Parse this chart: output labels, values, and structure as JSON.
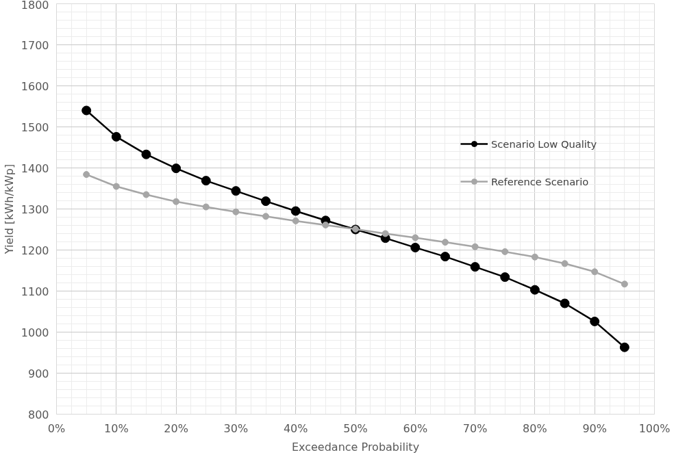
{
  "chart_data": {
    "type": "line",
    "xlabel": "Exceedance Probability",
    "ylabel": "Yield [kWh/kWp]",
    "x": [
      5,
      10,
      15,
      20,
      25,
      30,
      35,
      40,
      45,
      50,
      55,
      60,
      65,
      70,
      75,
      80,
      85,
      90,
      95
    ],
    "series": [
      {
        "name": "Scenario Low Quality",
        "color": "#000000",
        "values": [
          1540,
          1476,
          1433,
          1399,
          1369,
          1344,
          1319,
          1295,
          1272,
          1250,
          1229,
          1206,
          1184,
          1159,
          1134,
          1103,
          1070,
          1026,
          963
        ]
      },
      {
        "name": "Reference Scenario",
        "color": "#a6a6a6",
        "values": [
          1384,
          1355,
          1335,
          1318,
          1305,
          1293,
          1282,
          1271,
          1261,
          1251,
          1240,
          1230,
          1219,
          1208,
          1196,
          1183,
          1167,
          1147,
          1117
        ]
      }
    ],
    "xlim": [
      0,
      100
    ],
    "ylim": [
      800,
      1800
    ],
    "xticks": [
      {
        "value": 0,
        "label": "0%"
      },
      {
        "value": 10,
        "label": "10%"
      },
      {
        "value": 20,
        "label": "20%"
      },
      {
        "value": 30,
        "label": "30%"
      },
      {
        "value": 40,
        "label": "40%"
      },
      {
        "value": 50,
        "label": "50%"
      },
      {
        "value": 60,
        "label": "60%"
      },
      {
        "value": 70,
        "label": "70%"
      },
      {
        "value": 80,
        "label": "80%"
      },
      {
        "value": 90,
        "label": "90%"
      },
      {
        "value": 100,
        "label": "100%"
      }
    ],
    "yticks": [
      800,
      900,
      1000,
      1100,
      1200,
      1300,
      1400,
      1500,
      1600,
      1700,
      1800
    ],
    "grid": true,
    "legend": "right",
    "marker": "circle",
    "line_style": "solid"
  }
}
